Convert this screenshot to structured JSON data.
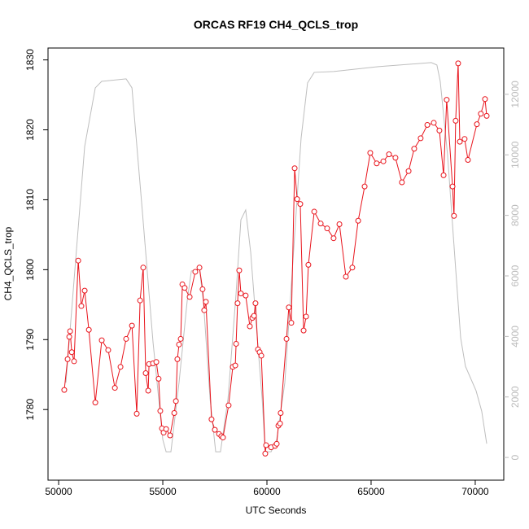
{
  "chart_data": {
    "type": "line",
    "title": "ORCAS RF19 CH4_QCLS_trop",
    "xlabel": "UTC Seconds",
    "ylabel": "CH4_QCLS_trop",
    "xlim": [
      49490,
      71370
    ],
    "ylim": [
      1769.9,
      1831.7
    ],
    "y2lim": [
      -750,
      13530
    ],
    "xticks": [
      50000,
      55000,
      60000,
      65000,
      70000
    ],
    "yticks": [
      1780,
      1790,
      1800,
      1810,
      1820,
      1830
    ],
    "y2ticks": [
      0,
      2000,
      4000,
      6000,
      8000,
      10000,
      12000
    ],
    "y2tick_color": "#bbbbbb",
    "series": [
      {
        "color": "#bebebe",
        "axis": "y2",
        "marker": false,
        "x": [
          50350,
          51250,
          51760,
          52070,
          53240,
          53520,
          54020,
          54530,
          55000,
          55160,
          55390,
          55780,
          56170,
          56370,
          56760,
          56950,
          57270,
          57540,
          57770,
          58130,
          58520,
          58750,
          58980,
          59220,
          59490,
          59770,
          59920,
          60200,
          60470,
          60860,
          61250,
          61640,
          61950,
          62270,
          63200,
          65350,
          67890,
          68160,
          68320,
          68670,
          69060,
          69300,
          69530,
          70040,
          70310,
          70550
        ],
        "values": [
          2475,
          10277,
          12214,
          12430,
          12510,
          12214,
          8125,
          3820,
          592,
          188,
          188,
          2475,
          5165,
          6161,
          6242,
          5165,
          1937,
          188,
          188,
          1937,
          5435,
          7856,
          8179,
          6780,
          4358,
          1937,
          188,
          188,
          592,
          2475,
          6511,
          10546,
          12376,
          12725,
          12752,
          12914,
          13048,
          12968,
          12430,
          10008,
          6242,
          3955,
          3013,
          2206,
          1534,
          457
        ]
      },
      {
        "color": "#e8141c",
        "axis": "y",
        "marker": true,
        "x": [
          50270,
          50430,
          50510,
          50550,
          50630,
          50740,
          50940,
          51090,
          51250,
          51450,
          51760,
          52070,
          52380,
          52700,
          52970,
          53240,
          53520,
          53750,
          53910,
          54060,
          54180,
          54300,
          54340,
          54530,
          54690,
          54800,
          54880,
          54960,
          55040,
          55160,
          55350,
          55550,
          55630,
          55700,
          55780,
          55860,
          55940,
          56050,
          56290,
          56560,
          56760,
          56910,
          56990,
          57070,
          57340,
          57500,
          57700,
          57810,
          57890,
          58160,
          58360,
          58480,
          58520,
          58590,
          58670,
          58750,
          58980,
          59180,
          59300,
          59380,
          59450,
          59570,
          59650,
          59730,
          59920,
          59960,
          60200,
          60390,
          60470,
          60550,
          60630,
          60660,
          60940,
          61050,
          61170,
          61330,
          61450,
          61600,
          61760,
          61880,
          61990,
          62270,
          62580,
          62890,
          63200,
          63480,
          63790,
          64100,
          64380,
          64690,
          64960,
          65270,
          65590,
          65860,
          66170,
          66480,
          66800,
          67070,
          67380,
          67700,
          68010,
          68280,
          68480,
          68630,
          68910,
          68980,
          69060,
          69180,
          69260,
          69490,
          69650,
          70080,
          70270,
          70470,
          70550
        ],
        "values": [
          1782.8,
          1787.2,
          1790.4,
          1791.2,
          1788.2,
          1786.9,
          1801.3,
          1794.8,
          1797.0,
          1791.4,
          1781.0,
          1789.9,
          1788.5,
          1783.1,
          1786.1,
          1790.1,
          1792.0,
          1779.4,
          1795.6,
          1800.3,
          1785.2,
          1782.7,
          1786.5,
          1786.6,
          1786.8,
          1784.4,
          1779.8,
          1777.3,
          1776.7,
          1777.2,
          1776.3,
          1779.5,
          1781.2,
          1787.2,
          1789.3,
          1790.1,
          1797.9,
          1797.4,
          1796.1,
          1799.7,
          1800.3,
          1797.2,
          1794.2,
          1795.4,
          1778.6,
          1777.1,
          1776.5,
          1776.2,
          1776.0,
          1780.6,
          1786.1,
          1786.3,
          1789.4,
          1795.2,
          1799.9,
          1796.6,
          1796.3,
          1791.9,
          1793.1,
          1793.4,
          1795.2,
          1788.6,
          1788.2,
          1787.7,
          1773.7,
          1774.9,
          1774.6,
          1774.8,
          1775.1,
          1777.7,
          1778.0,
          1779.5,
          1790.1,
          1794.6,
          1792.4,
          1814.5,
          1810.1,
          1809.4,
          1791.3,
          1793.3,
          1800.7,
          1808.3,
          1806.6,
          1805.9,
          1804.5,
          1806.5,
          1799.0,
          1800.3,
          1807.0,
          1811.9,
          1816.7,
          1815.2,
          1815.5,
          1816.5,
          1816.0,
          1812.5,
          1814.1,
          1817.3,
          1818.8,
          1820.7,
          1821.0,
          1819.9,
          1813.5,
          1824.3,
          1811.9,
          1807.7,
          1821.3,
          1829.5,
          1818.3,
          1818.7,
          1815.7,
          1820.8,
          1822.3,
          1824.4,
          1822.0
        ]
      }
    ]
  }
}
